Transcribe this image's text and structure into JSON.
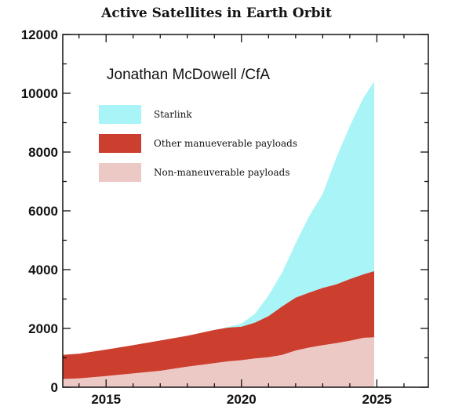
{
  "chart_data": {
    "type": "area",
    "stacked": true,
    "title": "Active Satellites in Earth Orbit",
    "credit": "Jonathan McDowell /CfA",
    "xlim": [
      2013.4,
      2026.9
    ],
    "ylim": [
      0,
      12000
    ],
    "x_ticks": [
      2015,
      2020,
      2025
    ],
    "y_ticks": [
      0,
      2000,
      4000,
      6000,
      8000,
      10000,
      12000
    ],
    "x_minor_step": 1,
    "y_minor_step": 1000,
    "grid": false,
    "legend_position": "top-left",
    "x": [
      2013.4,
      2014.0,
      2015.0,
      2016.0,
      2017.0,
      2018.0,
      2019.0,
      2019.5,
      2020.0,
      2020.5,
      2021.0,
      2021.5,
      2022.0,
      2022.5,
      2023.0,
      2023.5,
      2024.0,
      2024.5,
      2024.9
    ],
    "series": [
      {
        "name": "Non-maneuverable payloads",
        "color": "#ecc9c5",
        "values": [
          280,
          300,
          380,
          470,
          560,
          700,
          820,
          880,
          920,
          980,
          1020,
          1100,
          1250,
          1350,
          1430,
          1500,
          1580,
          1680,
          1700
        ]
      },
      {
        "name": "Other manueverable payloads",
        "color": "#cc3f2e",
        "values": [
          820,
          840,
          900,
          960,
          1030,
          1050,
          1130,
          1150,
          1140,
          1220,
          1400,
          1650,
          1800,
          1870,
          1950,
          2000,
          2100,
          2160,
          2250
        ]
      },
      {
        "name": "Starlink",
        "color": "#a8f4f6",
        "values": [
          0,
          0,
          0,
          0,
          0,
          0,
          0,
          20,
          100,
          300,
          700,
          1150,
          1850,
          2600,
          3200,
          4300,
          5200,
          6000,
          6450
        ]
      }
    ]
  }
}
